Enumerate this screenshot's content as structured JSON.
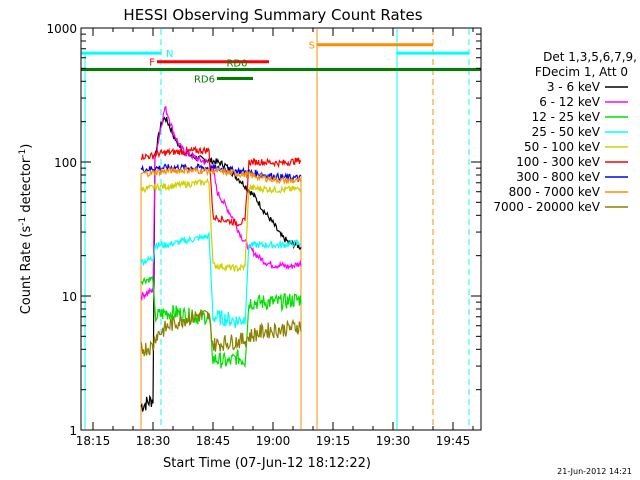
{
  "chart_data": {
    "type": "line",
    "title": "HESSI Observing Summary Count Rates",
    "xlabel": "Start Time (07-Jun-12 18:12:22)",
    "ylabel_main": "Count Rate (s",
    "ylabel_sup1": "-1",
    "ylabel_mid": " detector",
    "ylabel_sup2": "-1",
    "ylabel_end": ")",
    "yscale": "log",
    "ylim": [
      1,
      1000
    ],
    "xlim": [
      "18:12",
      "19:52"
    ],
    "x_ticks": [
      "18:15",
      "18:30",
      "18:45",
      "19:00",
      "19:15",
      "19:30",
      "19:45"
    ],
    "y_ticks": [
      "1",
      "10",
      "100",
      "1000"
    ],
    "footer_date": "21-Jun-2012 14:21",
    "legend": {
      "header_line1": "Det 1,3,5,6,7,9,",
      "header_line2": "FDecim 1, Att 0"
    },
    "series": [
      {
        "name": "3 - 6 keV",
        "color": "#000000",
        "points": [
          [
            "18:27",
            1.5
          ],
          [
            "18:30",
            1.7
          ],
          [
            "18:30.5",
            112
          ],
          [
            "18:31",
            135
          ],
          [
            "18:32",
            190
          ],
          [
            "18:33",
            215
          ],
          [
            "18:34",
            190
          ],
          [
            "18:35",
            160
          ],
          [
            "18:36",
            140
          ],
          [
            "18:37",
            125
          ],
          [
            "18:38",
            118
          ],
          [
            "18:40",
            110
          ],
          [
            "18:42",
            105
          ],
          [
            "18:44",
            103
          ],
          [
            "18:46",
            100
          ],
          [
            "18:48",
            95
          ],
          [
            "18:50",
            82
          ],
          [
            "18:52",
            72
          ],
          [
            "18:54",
            62
          ],
          [
            "18:56",
            52
          ],
          [
            "18:58",
            42
          ],
          [
            "19:00",
            35
          ],
          [
            "19:02",
            28
          ],
          [
            "19:04",
            25
          ],
          [
            "19:06",
            24
          ],
          [
            "19:07",
            23
          ]
        ]
      },
      {
        "name": "6 - 12 keV",
        "color": "#ff00ff",
        "points": [
          [
            "18:27",
            10
          ],
          [
            "18:30",
            11
          ],
          [
            "18:30.5",
            105
          ],
          [
            "18:31",
            125
          ],
          [
            "18:32",
            185
          ],
          [
            "18:33",
            255
          ],
          [
            "18:34",
            215
          ],
          [
            "18:35",
            170
          ],
          [
            "18:36",
            145
          ],
          [
            "18:37",
            128
          ],
          [
            "18:38",
            118
          ],
          [
            "18:40",
            110
          ],
          [
            "18:42",
            102
          ],
          [
            "18:44",
            100
          ],
          [
            "18:45",
            90
          ],
          [
            "18:46",
            60
          ],
          [
            "18:48",
            48
          ],
          [
            "18:50",
            38
          ],
          [
            "18:52",
            28
          ],
          [
            "18:54",
            23
          ],
          [
            "18:56",
            20
          ],
          [
            "18:58",
            18
          ],
          [
            "19:00",
            17
          ],
          [
            "19:02",
            17
          ],
          [
            "19:04",
            16.5
          ],
          [
            "19:07",
            17.5
          ]
        ]
      },
      {
        "name": "12 - 25 keV",
        "color": "#00e000",
        "points": [
          [
            "18:27",
            13
          ],
          [
            "18:30",
            13.5
          ],
          [
            "18:30.5",
            7
          ],
          [
            "18:33",
            7.5
          ],
          [
            "18:36",
            7.5
          ],
          [
            "18:40",
            7
          ],
          [
            "18:44",
            7
          ],
          [
            "18:45",
            3.4
          ],
          [
            "18:47",
            3.3
          ],
          [
            "18:49",
            3.2
          ],
          [
            "18:51",
            3.5
          ],
          [
            "18:53",
            3.3
          ],
          [
            "18:54",
            9
          ],
          [
            "18:58",
            9
          ],
          [
            "19:02",
            9
          ],
          [
            "19:07",
            9.5
          ]
        ]
      },
      {
        "name": "25 - 50 keV",
        "color": "#00ffff",
        "points": [
          [
            "18:27",
            18
          ],
          [
            "18:30",
            19
          ],
          [
            "18:30.5",
            24
          ],
          [
            "18:33",
            24
          ],
          [
            "18:36",
            25
          ],
          [
            "18:40",
            26.5
          ],
          [
            "18:44",
            28
          ],
          [
            "18:45",
            7
          ],
          [
            "18:48",
            6.8
          ],
          [
            "18:51",
            6.5
          ],
          [
            "18:53",
            6.8
          ],
          [
            "18:54",
            24
          ],
          [
            "18:58",
            24
          ],
          [
            "19:02",
            24
          ],
          [
            "19:07",
            25
          ]
        ]
      },
      {
        "name": "50 - 100 keV",
        "color": "#d0d000",
        "points": [
          [
            "18:27",
            63
          ],
          [
            "18:30",
            64
          ],
          [
            "18:30.5",
            65
          ],
          [
            "18:34",
            66
          ],
          [
            "18:38",
            68
          ],
          [
            "18:42",
            70
          ],
          [
            "18:44",
            71
          ],
          [
            "18:45",
            17
          ],
          [
            "18:48",
            16.5
          ],
          [
            "18:51",
            16
          ],
          [
            "18:53",
            16.5
          ],
          [
            "18:54",
            64
          ],
          [
            "18:58",
            63
          ],
          [
            "19:02",
            62
          ],
          [
            "19:07",
            63
          ]
        ]
      },
      {
        "name": "100 - 300 keV",
        "color": "#ff0000",
        "points": [
          [
            "18:27",
            110
          ],
          [
            "18:30",
            111
          ],
          [
            "18:30.5",
            115
          ],
          [
            "18:34",
            118
          ],
          [
            "18:38",
            120
          ],
          [
            "18:42",
            122
          ],
          [
            "18:44",
            122
          ],
          [
            "18:45",
            39
          ],
          [
            "18:48",
            37
          ],
          [
            "18:51",
            35
          ],
          [
            "18:53",
            36
          ],
          [
            "18:54",
            100
          ],
          [
            "18:58",
            100
          ],
          [
            "19:02",
            98
          ],
          [
            "19:07",
            103
          ]
        ]
      },
      {
        "name": "300 - 800 keV",
        "color": "#0000ff",
        "points": [
          [
            "18:27",
            88
          ],
          [
            "18:30",
            89
          ],
          [
            "18:30.5",
            90
          ],
          [
            "18:34",
            91
          ],
          [
            "18:38",
            91
          ],
          [
            "18:42",
            91
          ],
          [
            "18:45",
            90
          ],
          [
            "18:48",
            88
          ],
          [
            "18:51",
            86
          ],
          [
            "18:54",
            84
          ],
          [
            "18:58",
            80
          ],
          [
            "19:02",
            77
          ],
          [
            "19:07",
            76
          ]
        ]
      },
      {
        "name": "800 - 7000 keV",
        "color": "#ff8c00",
        "points": [
          [
            "18:27",
            82
          ],
          [
            "18:30",
            83
          ],
          [
            "18:30.5",
            84
          ],
          [
            "18:34",
            86
          ],
          [
            "18:38",
            87
          ],
          [
            "18:42",
            86
          ],
          [
            "18:45",
            86
          ],
          [
            "18:48",
            84
          ],
          [
            "18:51",
            82
          ],
          [
            "18:54",
            80
          ],
          [
            "18:58",
            76
          ],
          [
            "19:02",
            73
          ],
          [
            "19:07",
            72
          ]
        ]
      },
      {
        "name": "7000 - 20000 keV",
        "color": "#8b8000",
        "points": [
          [
            "18:27",
            4
          ],
          [
            "18:30",
            4.2
          ],
          [
            "18:30.5",
            5
          ],
          [
            "18:34",
            6
          ],
          [
            "18:38",
            6.8
          ],
          [
            "18:42",
            7.2
          ],
          [
            "18:44",
            7
          ],
          [
            "18:45",
            4.3
          ],
          [
            "18:48",
            4.5
          ],
          [
            "18:51",
            4.6
          ],
          [
            "18:53",
            4.7
          ],
          [
            "18:54",
            5
          ],
          [
            "18:58",
            5.5
          ],
          [
            "19:02",
            5.6
          ],
          [
            "19:07",
            6
          ]
        ]
      }
    ],
    "flags": [
      {
        "label": "N",
        "color": "#00ffff",
        "value": 650,
        "segments": [
          [
            "18:12",
            "18:32"
          ],
          [
            "19:31",
            "19:49"
          ]
        ],
        "label_at": "18:32.5",
        "label_side": "right"
      },
      {
        "label": "S",
        "color": "#ff8c00",
        "value": 750,
        "segments": [
          [
            "19:11",
            "19:40"
          ]
        ],
        "label_at": "19:10.5",
        "label_side": "left"
      },
      {
        "label": "F",
        "color": "#ff0000",
        "value": 560,
        "segments": [
          [
            "18:31",
            "18:59"
          ]
        ],
        "label_at": "18:30.5",
        "label_side": "left"
      },
      {
        "label": "RD0",
        "color": "#008000",
        "value": 490,
        "segments": [
          [
            "18:12",
            "19:52"
          ]
        ],
        "label_at": "18:51",
        "label_side": "center"
      },
      {
        "label": "RD6",
        "color": "#008000",
        "value": 420,
        "segments": [
          [
            "18:46",
            "18:55"
          ]
        ],
        "label_at": "18:45.5",
        "label_side": "left"
      }
    ],
    "verticals": [
      {
        "time": "18:32",
        "color": "#00ffff",
        "style": "dash"
      },
      {
        "time": "19:11",
        "color": "#ff8c00",
        "style": "solid"
      },
      {
        "time": "19:31",
        "color": "#00ffff",
        "style": "solid"
      },
      {
        "time": "19:40",
        "color": "#ff8c00",
        "style": "dash"
      },
      {
        "time": "19:49",
        "color": "#00ffff",
        "style": "dash"
      }
    ],
    "bracket_lines": [
      {
        "time": "18:27",
        "color": "#ff8c00",
        "from": 1,
        "to": 82
      },
      {
        "time": "19:07",
        "color": "#ff8c00",
        "from": 1,
        "to": 80
      },
      {
        "time": "18:13",
        "color": "#00ffff",
        "from": 1,
        "to": 650
      }
    ]
  }
}
